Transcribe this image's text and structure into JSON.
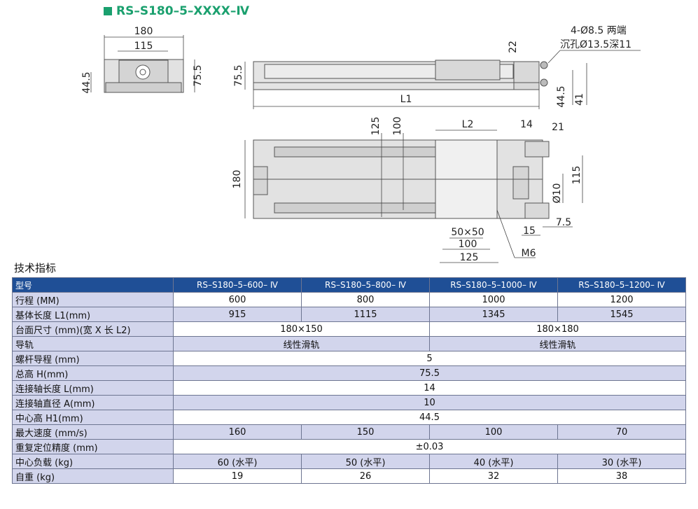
{
  "header": {
    "title": "RS–S180–5–XXXX–Ⅳ"
  },
  "drawing": {
    "labels": [
      "180",
      "115",
      "44.5",
      "75.5",
      "75.5",
      "22",
      "4-Ø8.5 两端",
      "沉孔Ø13.5深11",
      "L1",
      "44.5",
      "41",
      "125",
      "100",
      "L2",
      "14",
      "21",
      "180",
      "115",
      "Ø10",
      "50×50",
      "100",
      "125",
      "15",
      "7.5",
      "M6"
    ]
  },
  "table": {
    "section_title": "技术指标",
    "header": [
      "型号",
      "RS–S180–5–600– Ⅳ",
      "RS–S180–5–800– Ⅳ",
      "RS–S180–5–1000– Ⅳ",
      "RS–S180–5–1200– Ⅳ"
    ],
    "rows": [
      [
        "行程 (MM)",
        "600",
        "800",
        "1000",
        "1200"
      ],
      [
        "基体长度 L1(mm)",
        "915",
        "1115",
        "1345",
        "1545"
      ],
      [
        "台面尺寸 (mm)(宽 X 长 L2)",
        "180×150",
        "180×180"
      ],
      [
        "导轨",
        "线性滑轨",
        "线性滑轨"
      ],
      [
        "螺杆导程 (mm)",
        "5"
      ],
      [
        "总高 H(mm)",
        "75.5"
      ],
      [
        "连接轴长度 L(mm)",
        "14"
      ],
      [
        "连接轴直径 A(mm)",
        "10"
      ],
      [
        "中心高 H1(mm)",
        "44.5"
      ],
      [
        "最大速度 (mm/s)",
        "160",
        "150",
        "100",
        "70"
      ],
      [
        "重复定位精度 (mm)",
        "±0.03"
      ],
      [
        "中心负载 (kg)",
        "60 (水平)",
        "50 (水平)",
        "40 (水平)",
        "30 (水平)"
      ],
      [
        "自重 (kg)",
        "19",
        "26",
        "32",
        "38"
      ]
    ]
  }
}
